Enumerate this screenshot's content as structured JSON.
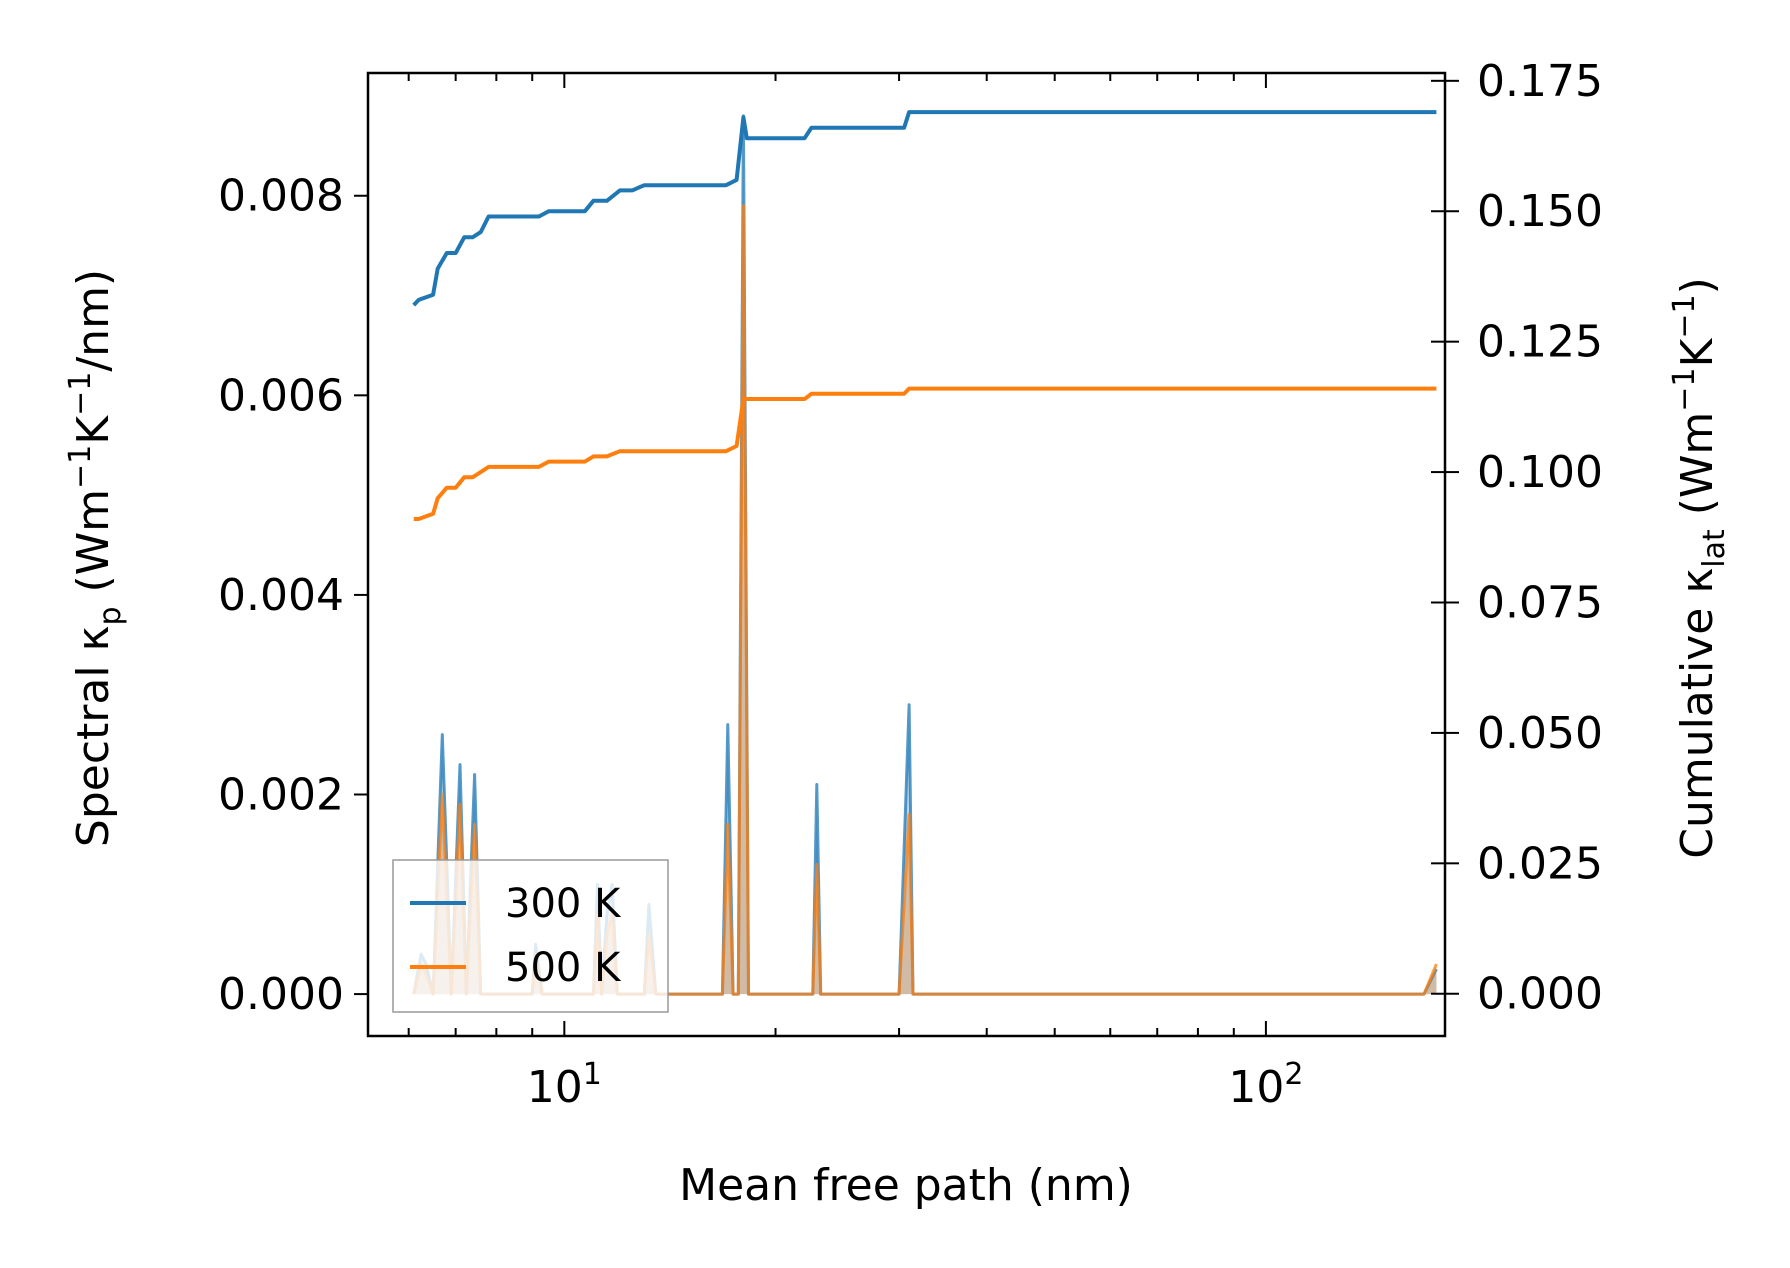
{
  "chart_data": {
    "type": "line",
    "xlabel": "Mean free path (nm)",
    "xscale": "log",
    "xlim": [
      5.25,
      180
    ],
    "x_ticks": [
      {
        "value": 10,
        "base": "10",
        "exp": "1"
      },
      {
        "value": 100,
        "base": "10",
        "exp": "2"
      }
    ],
    "y_left": {
      "label_main": "Spectral κ",
      "label_sub": "p",
      "label_unit_pre": " (Wm",
      "label_exp1": "−1",
      "label_mid": "K",
      "label_exp2": "−1",
      "label_unit_post": "/nm)",
      "lim": [
        -0.00042,
        0.00923
      ],
      "ticks": [
        "0.000",
        "0.002",
        "0.004",
        "0.006",
        "0.008"
      ]
    },
    "y_right": {
      "label_main": "Cumulative κ",
      "label_sub": "lat",
      "label_unit_pre": " (Wm",
      "label_exp1": "−1",
      "label_mid": "K",
      "label_exp2": "−1",
      "label_unit_post": ")",
      "lim": [
        -0.0081,
        0.1765
      ],
      "ticks": [
        "0.000",
        "0.025",
        "0.050",
        "0.075",
        "0.100",
        "0.125",
        "0.150",
        "0.175"
      ]
    },
    "legend": {
      "position": "lower-left",
      "entries": [
        "300 K",
        "500 K"
      ]
    },
    "series": [
      {
        "name": "300 K",
        "color": "#1f77b4",
        "axis": "right",
        "kind": "cumulative",
        "x": [
          6.1,
          6.2,
          6.5,
          6.6,
          6.8,
          7.0,
          7.2,
          7.4,
          7.6,
          7.8,
          8.0,
          8.3,
          8.6,
          8.9,
          9.2,
          9.5,
          9.8,
          10.1,
          10.4,
          10.7,
          11.0,
          11.5,
          12.0,
          12.5,
          13.0,
          14,
          15,
          16,
          17,
          17.6,
          18.0,
          18.2,
          19,
          20,
          21,
          22,
          22.5,
          23,
          25,
          27,
          29,
          30.5,
          31,
          40,
          60,
          80,
          100,
          130,
          160,
          175
        ],
        "y": [
          0.132,
          0.133,
          0.134,
          0.139,
          0.142,
          0.142,
          0.145,
          0.145,
          0.146,
          0.149,
          0.149,
          0.149,
          0.149,
          0.149,
          0.149,
          0.15,
          0.15,
          0.15,
          0.15,
          0.15,
          0.152,
          0.152,
          0.154,
          0.154,
          0.155,
          0.155,
          0.155,
          0.155,
          0.155,
          0.156,
          0.168,
          0.164,
          0.164,
          0.164,
          0.164,
          0.164,
          0.166,
          0.166,
          0.166,
          0.166,
          0.166,
          0.166,
          0.169,
          0.169,
          0.169,
          0.169,
          0.169,
          0.169,
          0.169,
          0.169
        ]
      },
      {
        "name": "500 K",
        "color": "#ff7f0e",
        "axis": "right",
        "kind": "cumulative",
        "x": [
          6.1,
          6.2,
          6.5,
          6.6,
          6.8,
          7.0,
          7.2,
          7.4,
          7.6,
          7.8,
          8.0,
          8.3,
          8.6,
          8.9,
          9.2,
          9.5,
          9.8,
          10.1,
          10.4,
          10.7,
          11.0,
          11.5,
          12.0,
          12.5,
          13.0,
          14,
          15,
          16,
          17,
          17.6,
          18.0,
          18.2,
          19,
          20,
          21,
          22,
          22.5,
          23,
          25,
          27,
          29,
          30.5,
          31,
          40,
          60,
          80,
          100,
          130,
          160,
          175
        ],
        "y": [
          0.091,
          0.091,
          0.092,
          0.095,
          0.097,
          0.097,
          0.099,
          0.099,
          0.1,
          0.101,
          0.101,
          0.101,
          0.101,
          0.101,
          0.101,
          0.102,
          0.102,
          0.102,
          0.102,
          0.102,
          0.103,
          0.103,
          0.104,
          0.104,
          0.104,
          0.104,
          0.104,
          0.104,
          0.104,
          0.105,
          0.114,
          0.114,
          0.114,
          0.114,
          0.114,
          0.114,
          0.115,
          0.115,
          0.115,
          0.115,
          0.115,
          0.115,
          0.116,
          0.116,
          0.116,
          0.116,
          0.116,
          0.116,
          0.116,
          0.116
        ]
      },
      {
        "name": "300 K",
        "color": "#1f77b4",
        "axis": "left",
        "kind": "spectral",
        "x": [
          6.1,
          6.25,
          6.35,
          6.5,
          6.7,
          6.9,
          7.1,
          7.25,
          7.45,
          7.6,
          7.75,
          7.9,
          8.2,
          8.5,
          8.8,
          9.0,
          9.1,
          9.3,
          9.6,
          9.9,
          10.2,
          10.5,
          10.8,
          11.0,
          11.15,
          11.3,
          11.5,
          11.7,
          11.9,
          12.2,
          12.5,
          12.8,
          13.0,
          13.2,
          13.5,
          14,
          15,
          16,
          16.8,
          17.1,
          17.4,
          17.7,
          18.0,
          18.3,
          18.5,
          19,
          20,
          21,
          22.6,
          22.9,
          23.2,
          24,
          25,
          26,
          28,
          30,
          31.0,
          31.4,
          32,
          40,
          60,
          80,
          100,
          130,
          160,
          168,
          175
        ],
        "y": [
          0.0,
          0.0004,
          0.0003,
          0.0,
          0.0026,
          0.0,
          0.0023,
          0.0,
          0.0022,
          0.0,
          0.0,
          0.0,
          0.0,
          0.0,
          0.0,
          0.0,
          0.0005,
          0.0,
          0.0,
          0.0,
          0.0,
          0.0,
          0.0,
          0.0,
          0.0011,
          0.0,
          0.0008,
          0.0011,
          0.0,
          0.0,
          0.0,
          0.0,
          0.0,
          0.0009,
          0.0,
          0.0,
          0.0,
          0.0,
          0.0,
          0.0027,
          0.0,
          0.0,
          0.0088,
          0.0,
          0.0,
          0.0,
          0.0,
          0.0,
          0.0,
          0.0021,
          0.0,
          0.0,
          0.0,
          0.0,
          0.0,
          0.0,
          0.0029,
          0.0,
          0.0,
          0.0,
          0.0,
          0.0,
          0.0,
          0.0,
          0.0,
          0.0,
          0.00025
        ]
      },
      {
        "name": "500 K",
        "color": "#ff7f0e",
        "axis": "left",
        "kind": "spectral",
        "x": [
          6.1,
          6.25,
          6.35,
          6.5,
          6.7,
          6.9,
          7.1,
          7.25,
          7.45,
          7.6,
          7.75,
          7.9,
          8.2,
          8.5,
          8.8,
          9.0,
          9.1,
          9.3,
          9.6,
          9.9,
          10.2,
          10.5,
          10.8,
          11.0,
          11.15,
          11.3,
          11.5,
          11.7,
          11.9,
          12.2,
          12.5,
          12.8,
          13.0,
          13.2,
          13.5,
          14,
          15,
          16,
          16.8,
          17.1,
          17.4,
          17.7,
          18.0,
          18.3,
          18.5,
          19,
          20,
          21,
          22.6,
          22.9,
          23.2,
          24,
          25,
          26,
          28,
          30,
          31.0,
          31.4,
          32,
          40,
          60,
          80,
          100,
          130,
          160,
          168,
          175
        ],
        "y": [
          0.0,
          0.0003,
          0.0002,
          0.0,
          0.002,
          0.0,
          0.0019,
          0.0,
          0.0017,
          0.0,
          0.0,
          0.0,
          0.0,
          0.0,
          0.0,
          0.0,
          0.0004,
          0.0,
          0.0,
          0.0,
          0.0,
          0.0,
          0.0,
          0.0,
          0.0008,
          0.0,
          0.0006,
          0.0008,
          0.0,
          0.0,
          0.0,
          0.0,
          0.0,
          0.0006,
          0.0,
          0.0,
          0.0,
          0.0,
          0.0,
          0.0017,
          0.0,
          0.0,
          0.0079,
          0.0,
          0.0,
          0.0,
          0.0,
          0.0,
          0.0,
          0.0013,
          0.0,
          0.0,
          0.0,
          0.0,
          0.0,
          0.0,
          0.0018,
          0.0,
          0.0,
          0.0,
          0.0,
          0.0,
          0.0,
          0.0,
          0.0,
          0.0,
          0.0003
        ]
      }
    ]
  }
}
